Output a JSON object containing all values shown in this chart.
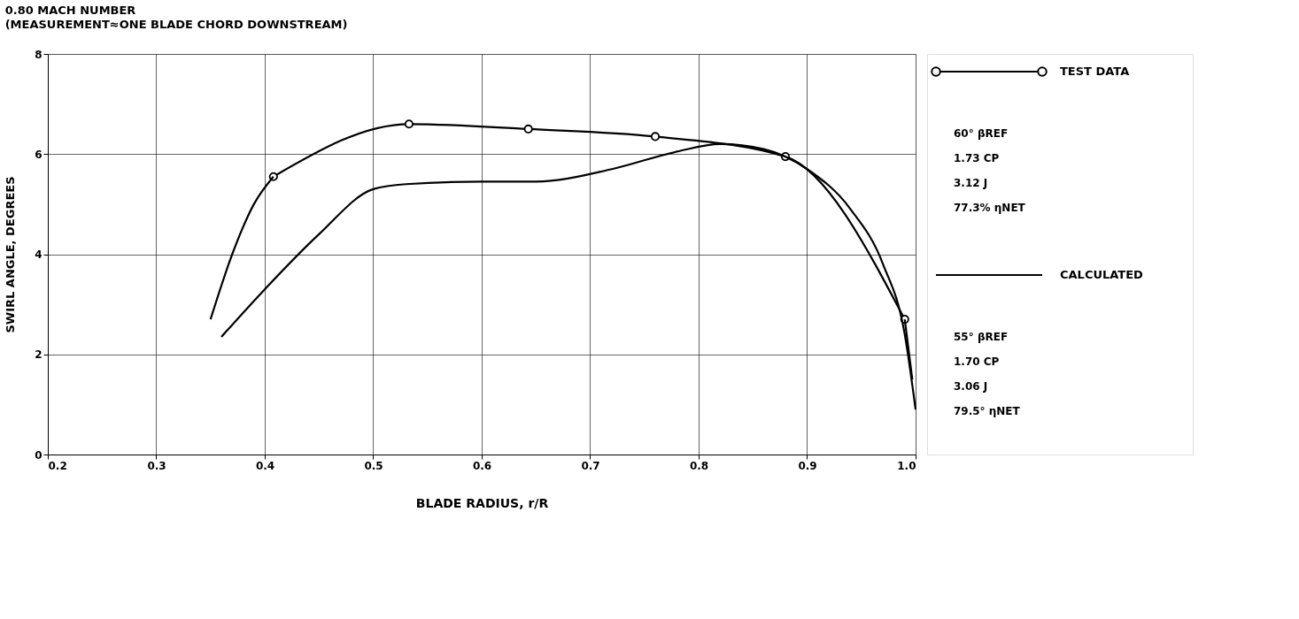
{
  "chart_data": {
    "type": "line",
    "title": "0.80 MACH NUMBER",
    "subtitle": "(MEASUREMENT≈ONE BLADE CHORD DOWNSTREAM)",
    "xlabel": "BLADE RADIUS, r/R",
    "ylabel": "SWIRL ANGLE, DEGREES",
    "xlim": [
      0.2,
      1.0
    ],
    "ylim": [
      0,
      8
    ],
    "xticks": [
      0.2,
      0.3,
      0.4,
      0.5,
      0.6,
      0.7,
      0.8,
      0.9,
      {
        "value": 1.0,
        "label": "1.0"
      }
    ],
    "yticks": [
      0,
      2,
      4,
      6,
      8
    ],
    "grid": true,
    "legend": "right",
    "series": [
      {
        "name": "TEST DATA",
        "color": "#000000",
        "marker": "circle",
        "x": [
          0.408,
          0.533,
          0.643,
          0.76,
          0.88,
          0.99
        ],
        "values": [
          5.55,
          6.6,
          6.5,
          6.35,
          5.95,
          2.7
        ]
      },
      {
        "name": "CALCULATED",
        "color": "#000000",
        "marker": "none",
        "x": [
          0.36,
          0.4,
          0.45,
          0.5,
          0.53,
          0.6,
          0.65,
          0.72,
          0.78,
          0.82,
          0.86,
          0.9,
          0.94,
          0.97,
          0.99,
          1.0
        ],
        "values": [
          2.35,
          3.3,
          4.4,
          5.3,
          5.4,
          5.45,
          5.45,
          5.7,
          6.05,
          6.2,
          6.1,
          5.7,
          4.9,
          3.8,
          2.4,
          0.9
        ]
      },
      {
        "color": "#000000",
        "marker": "none",
        "x": [
          0.35,
          0.37,
          0.39,
          0.408,
          null,
          0.99,
          0.997
        ],
        "values": [
          2.7,
          4.0,
          5.0,
          5.55,
          null,
          2.7,
          1.5
        ]
      }
    ],
    "annotations": [
      "60° βREF",
      "1.73 CP",
      "3.12 J",
      "77.3% ηNET",
      "55° βREF",
      "1.70 CP",
      "3.06 J",
      "79.5° ηNET"
    ]
  }
}
